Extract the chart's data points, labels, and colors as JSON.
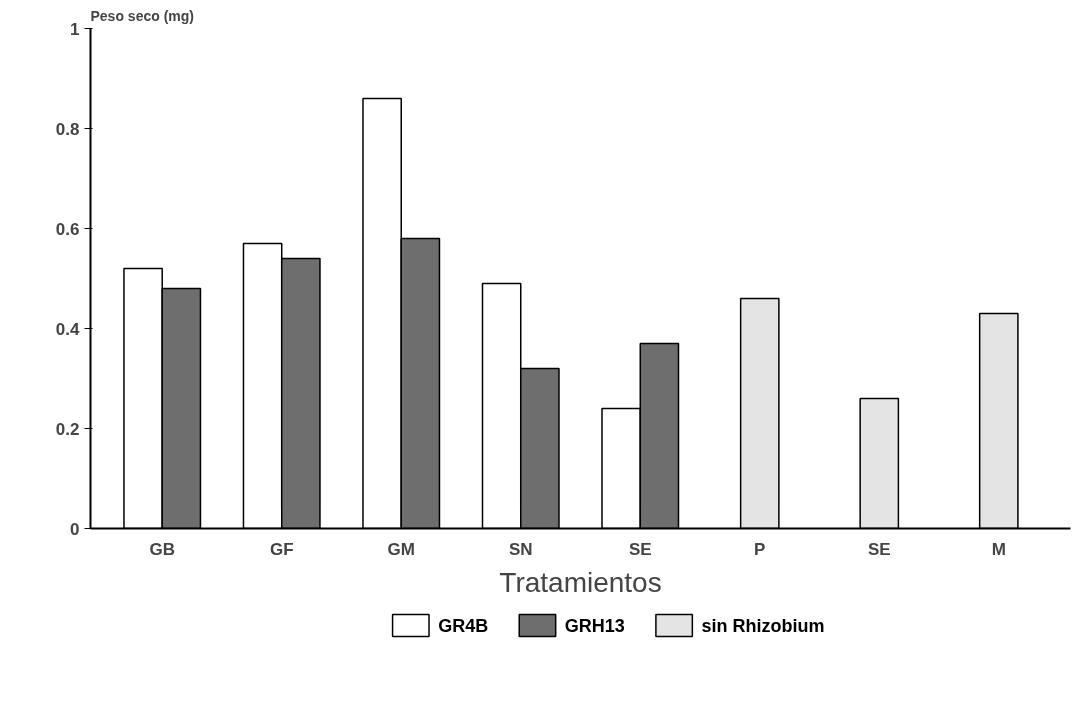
{
  "chart_data": {
    "type": "bar",
    "ylabel": "Peso seco (mg)",
    "xlabel": "Tratamientos",
    "categories": [
      "GB",
      "GF",
      "GM",
      "SN",
      "SE",
      "P",
      "SE",
      "M"
    ],
    "series": [
      {
        "name": "GR4B",
        "color": "#ffffff",
        "values": [
          0.52,
          0.57,
          0.86,
          0.49,
          0.24,
          null,
          null,
          null
        ]
      },
      {
        "name": "GRH13",
        "color": "#6e6e6e",
        "values": [
          0.48,
          0.54,
          0.58,
          0.32,
          0.37,
          null,
          null,
          null
        ]
      },
      {
        "name": "sin Rhizobium",
        "color": "#e4e4e4",
        "values": [
          null,
          null,
          null,
          null,
          null,
          0.46,
          0.26,
          0.43
        ]
      }
    ],
    "ylim": [
      0,
      1
    ],
    "yticks": [
      0,
      0.2,
      0.4,
      0.6,
      0.8,
      1
    ],
    "grid": false,
    "legend": "bottom"
  }
}
